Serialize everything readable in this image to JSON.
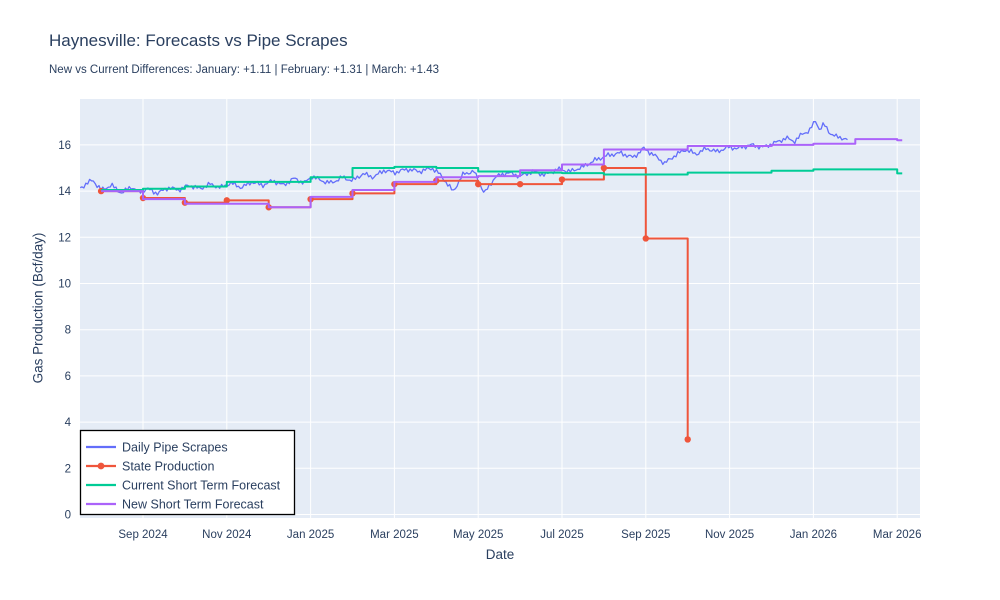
{
  "chart_data": {
    "type": "line",
    "title": "Haynesville: Forecasts vs Pipe Scrapes",
    "subtitle": "New vs Current Differences: January: +1.11 | February: +1.31 | March: +1.43",
    "xlabel": "Date",
    "ylabel": "Gas Production (Bcf/day)",
    "x_unit": "months since Aug 2024",
    "x_range_months": [
      -1.5,
      19.6
    ],
    "y_range": [
      0,
      18
    ],
    "x_tick_months": [
      1,
      3,
      5,
      7,
      9,
      11,
      13,
      15,
      17,
      19
    ],
    "x_tick_labels": [
      "Sep 2024",
      "Nov 2024",
      "Jan 2025",
      "Mar 2025",
      "May 2025",
      "Jul 2025",
      "Sep 2025",
      "Nov 2025",
      "Jan 2026",
      "Mar 2026"
    ],
    "y_ticks": [
      0,
      2,
      4,
      6,
      8,
      10,
      12,
      14,
      16
    ],
    "grid": "on",
    "plot_background": "#e5ecf6",
    "grid_color": "#ffffff",
    "text_color": "#2a3f5f",
    "legend": {
      "position": "bottom-left",
      "background": "#ffffff",
      "border_color": "#000000"
    },
    "series": [
      {
        "name": "Daily Pipe Scrapes",
        "color": "#636efa",
        "type": "noisy-daily-line",
        "anchors": [
          [
            -0.5,
            14.15
          ],
          [
            -0.35,
            14.3
          ],
          [
            -0.2,
            14.5
          ],
          [
            -0.1,
            14.25
          ],
          [
            0,
            14.05
          ],
          [
            0.25,
            14.25
          ],
          [
            0.5,
            13.9
          ],
          [
            0.7,
            14.2
          ],
          [
            0.9,
            13.95
          ],
          [
            1.1,
            14.1
          ],
          [
            1.35,
            13.9
          ],
          [
            1.6,
            14.15
          ],
          [
            1.85,
            14.05
          ],
          [
            2.1,
            14.25
          ],
          [
            2.35,
            14.1
          ],
          [
            2.6,
            14.3
          ],
          [
            2.85,
            14.15
          ],
          [
            3.1,
            14.35
          ],
          [
            3.35,
            14.15
          ],
          [
            3.6,
            14.4
          ],
          [
            3.85,
            14.25
          ],
          [
            4.1,
            14.45
          ],
          [
            4.35,
            14.25
          ],
          [
            4.6,
            14.55
          ],
          [
            4.85,
            14.35
          ],
          [
            5.05,
            14.65
          ],
          [
            5.25,
            14.45
          ],
          [
            5.5,
            14.35
          ],
          [
            5.75,
            14.6
          ],
          [
            6.0,
            14.45
          ],
          [
            6.25,
            14.75
          ],
          [
            6.5,
            14.6
          ],
          [
            6.75,
            14.9
          ],
          [
            7.0,
            14.8
          ],
          [
            7.3,
            14.95
          ],
          [
            7.6,
            14.85
          ],
          [
            7.9,
            15.0
          ],
          [
            8.1,
            14.7
          ],
          [
            8.4,
            13.98
          ],
          [
            8.65,
            14.75
          ],
          [
            8.9,
            14.85
          ],
          [
            9.15,
            13.9
          ],
          [
            9.4,
            14.6
          ],
          [
            9.7,
            14.8
          ],
          [
            10.0,
            14.65
          ],
          [
            10.3,
            14.85
          ],
          [
            10.6,
            14.7
          ],
          [
            10.9,
            14.95
          ],
          [
            11.2,
            14.85
          ],
          [
            11.5,
            15.05
          ],
          [
            11.8,
            15.35
          ],
          [
            12.1,
            15.55
          ],
          [
            12.4,
            15.65
          ],
          [
            12.7,
            15.45
          ],
          [
            12.95,
            15.85
          ],
          [
            13.2,
            15.55
          ],
          [
            13.45,
            15.2
          ],
          [
            13.7,
            15.55
          ],
          [
            13.95,
            15.8
          ],
          [
            14.2,
            15.6
          ],
          [
            14.45,
            15.85
          ],
          [
            14.7,
            15.7
          ],
          [
            14.95,
            15.9
          ],
          [
            15.2,
            15.85
          ],
          [
            15.5,
            16.0
          ],
          [
            15.8,
            15.9
          ],
          [
            16.1,
            16.1
          ],
          [
            16.35,
            16.3
          ],
          [
            16.55,
            16.15
          ],
          [
            16.75,
            16.5
          ],
          [
            16.9,
            16.6
          ],
          [
            17.05,
            17.05
          ],
          [
            17.15,
            16.65
          ],
          [
            17.25,
            16.9
          ],
          [
            17.4,
            16.5
          ],
          [
            17.55,
            16.35
          ],
          [
            17.7,
            16.3
          ],
          [
            17.85,
            16.2
          ]
        ],
        "noise": {
          "amp1": 0.07,
          "freq1": 2.7,
          "amp2": 0.05,
          "freq2": 5.3,
          "step_months": 0.045
        }
      },
      {
        "name": "State Production",
        "color": "#ef553b",
        "type": "step-with-markers",
        "months": [
          0,
          1,
          2,
          3,
          4,
          5,
          6,
          7,
          8,
          9,
          10,
          11,
          12,
          13,
          14
        ],
        "values": [
          14.0,
          13.7,
          13.5,
          13.6,
          13.3,
          13.65,
          13.9,
          14.3,
          14.45,
          14.3,
          14.3,
          14.5,
          15.0,
          11.95,
          3.25
        ]
      },
      {
        "name": "Current Short Term Forecast",
        "color": "#00cc96",
        "type": "step",
        "months": [
          0,
          1,
          2,
          3,
          4,
          5,
          6,
          7,
          8,
          9,
          10,
          11,
          12,
          13,
          14,
          15,
          16,
          17,
          18,
          19
        ],
        "values": [
          14.05,
          14.1,
          14.2,
          14.4,
          14.4,
          14.6,
          15.0,
          15.05,
          15.0,
          14.85,
          14.8,
          14.78,
          14.72,
          14.72,
          14.8,
          14.8,
          14.88,
          14.94,
          14.94,
          14.77
        ],
        "tail_month": 19.12
      },
      {
        "name": "New Short Term Forecast",
        "color": "#ab63fa",
        "type": "step",
        "months": [
          0,
          1,
          2,
          3,
          4,
          5,
          6,
          7,
          8,
          9,
          10,
          11,
          12,
          13,
          14,
          15,
          16,
          17,
          18,
          19
        ],
        "values": [
          14.0,
          13.65,
          13.45,
          13.45,
          13.3,
          13.75,
          14.05,
          14.4,
          14.6,
          14.65,
          14.9,
          15.15,
          15.8,
          15.8,
          15.95,
          15.95,
          16.0,
          16.05,
          16.25,
          16.2
        ],
        "tail_month": 19.12
      }
    ]
  }
}
